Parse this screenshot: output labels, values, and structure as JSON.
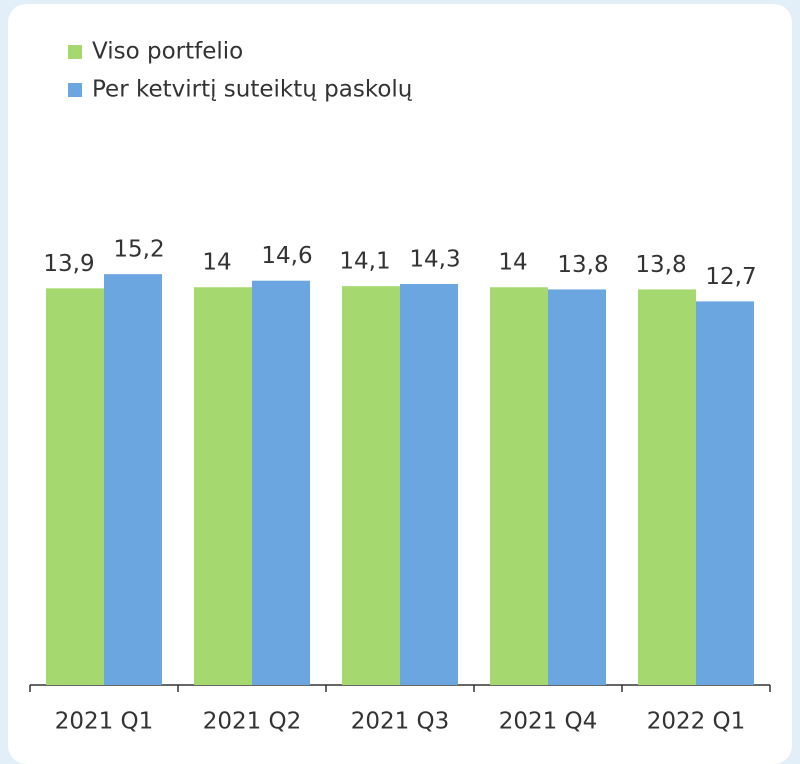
{
  "chart_data": {
    "type": "bar",
    "categories": [
      "2021 Q1",
      "2021 Q2",
      "2021 Q3",
      "2021 Q4",
      "2022 Q1"
    ],
    "series": [
      {
        "name": "Viso portfelio",
        "color": "#a5d86e",
        "values": [
          13.9,
          14,
          14.1,
          14,
          13.8
        ],
        "value_labels": [
          "13,9",
          "14",
          "14,1",
          "14",
          "13,8"
        ]
      },
      {
        "name": "Per ketvirtį suteiktų paskolų",
        "color": "#6ca6e0",
        "values": [
          15.2,
          14.6,
          14.3,
          13.8,
          12.7
        ],
        "value_labels": [
          "15,2",
          "14,6",
          "14,3",
          "13,8",
          "12,7"
        ]
      }
    ],
    "ylim": [
      -22.5,
      16.5
    ],
    "legend": "top-left"
  }
}
